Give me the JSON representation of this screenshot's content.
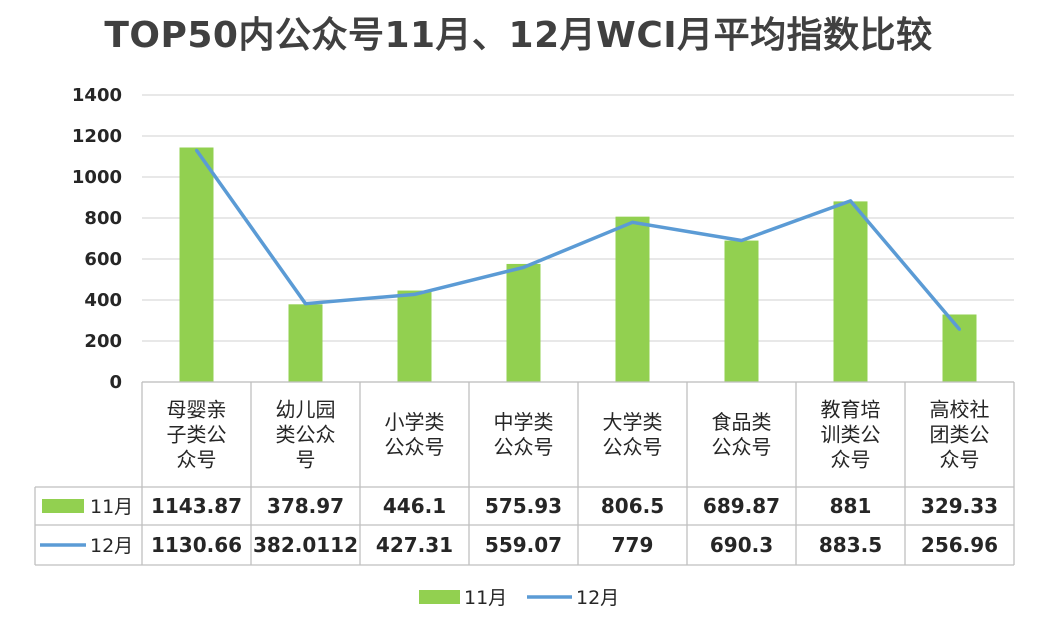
{
  "chart_data": {
    "type": "bar",
    "title": "TOP50内公众号11月、12月WCI月平均指数比较",
    "categories": [
      [
        "母婴亲",
        "子类公",
        "众号"
      ],
      [
        "幼儿园",
        "类公众",
        "号"
      ],
      [
        "小学类",
        "公众号"
      ],
      [
        "中学类",
        "公众号"
      ],
      [
        "大学类",
        "公众号"
      ],
      [
        "食品类",
        "公众号"
      ],
      [
        "教育培",
        "训类公",
        "众号"
      ],
      [
        "高校社",
        "团类公",
        "众号"
      ]
    ],
    "series": [
      {
        "name": "11月",
        "render": "bar",
        "color": "#92D050",
        "values": [
          1143.87,
          378.97,
          446.1,
          575.93,
          806.5,
          689.87,
          881,
          329.33
        ],
        "labels": [
          "1143.87",
          "378.97",
          "446.1",
          "575.93",
          "806.5",
          "689.87",
          "881",
          "329.33"
        ]
      },
      {
        "name": "12月",
        "render": "line",
        "color": "#5B9BD5",
        "values": [
          1130.66,
          382.0112,
          427.31,
          559.07,
          779,
          690.3,
          883.5,
          256.96
        ],
        "labels": [
          "1130.66",
          "382.0112",
          "427.31",
          "559.07",
          "779",
          "690.3",
          "883.5",
          "256.96"
        ]
      }
    ],
    "ylim": [
      0,
      1400
    ],
    "yticks": [
      "0",
      "200",
      "400",
      "600",
      "800",
      "1000",
      "1200",
      "1400"
    ],
    "grid": true,
    "legend": "bottom",
    "data_table": true
  }
}
